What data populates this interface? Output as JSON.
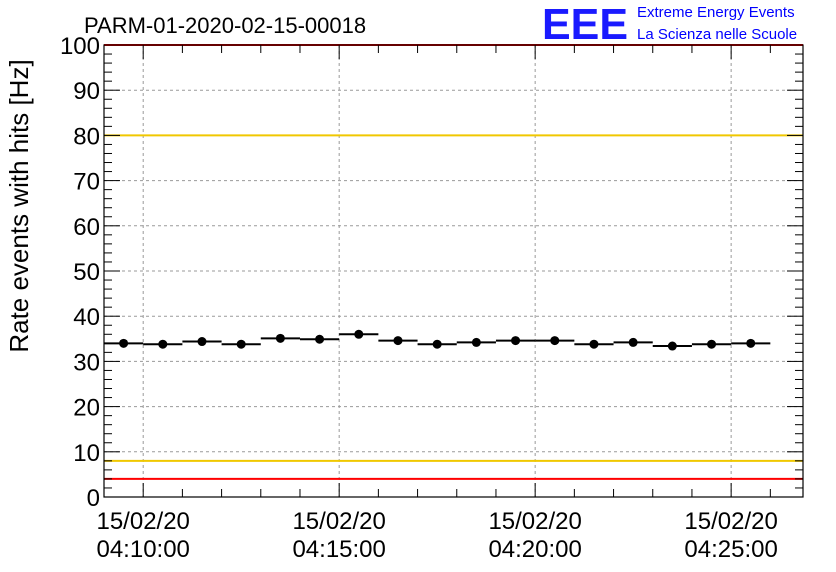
{
  "chart_data": {
    "type": "scatter",
    "title": "PARM-01-2020-02-15-00018",
    "ylabel": "Rate events with hits [Hz]",
    "xlabel": "",
    "ylim": [
      0,
      100
    ],
    "yticks": [
      0,
      10,
      20,
      30,
      40,
      50,
      60,
      70,
      80,
      90,
      100
    ],
    "x_range": [
      "15/02/20 04:09:00",
      "15/02/20 04:26:50"
    ],
    "xticks": [
      {
        "x": "15/02/20 04:10:00",
        "date": "15/02/20",
        "time": "04:10:00"
      },
      {
        "x": "15/02/20 04:15:00",
        "date": "15/02/20",
        "time": "04:15:00"
      },
      {
        "x": "15/02/20 04:20:00",
        "date": "15/02/20",
        "time": "04:20:00"
      },
      {
        "x": "15/02/20 04:25:00",
        "date": "15/02/20",
        "time": "04:25:00"
      }
    ],
    "grid": true,
    "reference_lines": [
      {
        "y": 100,
        "color": "#ff0000"
      },
      {
        "y": 80,
        "color": "#f0c800"
      },
      {
        "y": 8,
        "color": "#f0c800"
      },
      {
        "y": 4,
        "color": "#ff0000"
      }
    ],
    "bin_width_seconds": 60,
    "points": [
      {
        "x": "15/02/20 04:09:30",
        "y": 34.0
      },
      {
        "x": "15/02/20 04:10:30",
        "y": 33.8
      },
      {
        "x": "15/02/20 04:11:30",
        "y": 34.4
      },
      {
        "x": "15/02/20 04:12:30",
        "y": 33.8
      },
      {
        "x": "15/02/20 04:13:30",
        "y": 35.1
      },
      {
        "x": "15/02/20 04:14:30",
        "y": 34.9
      },
      {
        "x": "15/02/20 04:15:30",
        "y": 36.0
      },
      {
        "x": "15/02/20 04:16:30",
        "y": 34.6
      },
      {
        "x": "15/02/20 04:17:30",
        "y": 33.8
      },
      {
        "x": "15/02/20 04:18:30",
        "y": 34.2
      },
      {
        "x": "15/02/20 04:19:30",
        "y": 34.6
      },
      {
        "x": "15/02/20 04:20:30",
        "y": 34.6
      },
      {
        "x": "15/02/20 04:21:30",
        "y": 33.8
      },
      {
        "x": "15/02/20 04:22:30",
        "y": 34.2
      },
      {
        "x": "15/02/20 04:23:30",
        "y": 33.4
      },
      {
        "x": "15/02/20 04:24:30",
        "y": 33.8
      },
      {
        "x": "15/02/20 04:25:30",
        "y": 34.0
      }
    ],
    "colors": {
      "markers": "#000000",
      "grid": "#9a9a9a",
      "logo": "#0000ff"
    }
  },
  "logo": {
    "letters": "EEE",
    "line1": "Extreme Energy Events",
    "line2": "La Scienza nelle Scuole"
  }
}
